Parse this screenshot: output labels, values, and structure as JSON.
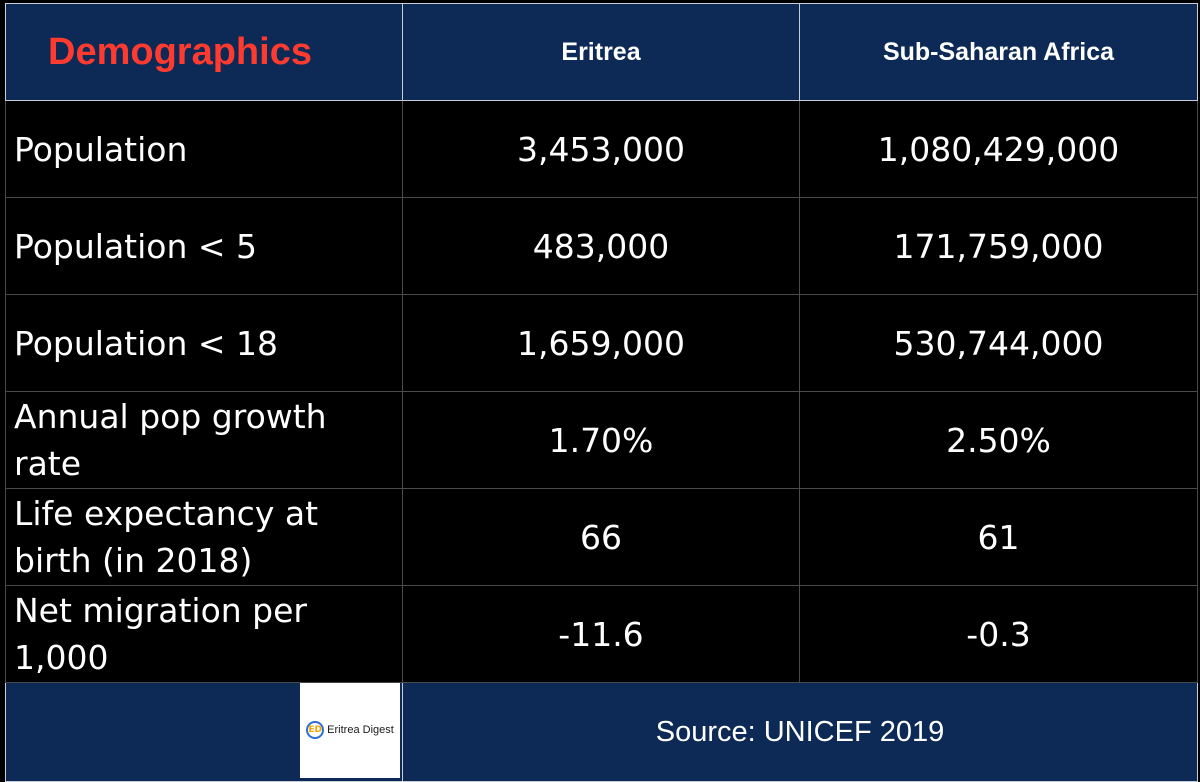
{
  "table": {
    "title": "Demographics",
    "columns": [
      "Eritrea",
      "Sub-Saharan Africa"
    ],
    "rows": [
      {
        "label": "Population",
        "eritrea": "3,453,000",
        "ssa": "1,080,429,000"
      },
      {
        "label": "Population < 5",
        "eritrea": "483,000",
        "ssa": "171,759,000"
      },
      {
        "label": "Population < 18",
        "eritrea": "1,659,000",
        "ssa": "530,744,000"
      },
      {
        "label": "Annual pop growth rate",
        "eritrea": "1.70%",
        "ssa": "2.50%"
      },
      {
        "label": "Life expectancy at birth (in 2018)",
        "eritrea": "66",
        "ssa": "61"
      },
      {
        "label": "Net migration per 1,000",
        "eritrea": "-11.6",
        "ssa": "-0.3"
      }
    ],
    "source": "Source: UNICEF 2019"
  },
  "logo": {
    "mark": "ED",
    "text": "Eritrea Digest",
    "icon": "eritrea-digest-logo-icon"
  },
  "colors": {
    "header_bg": "#0c2a55",
    "title_red": "#ff3a2f",
    "body_bg": "#000000"
  }
}
